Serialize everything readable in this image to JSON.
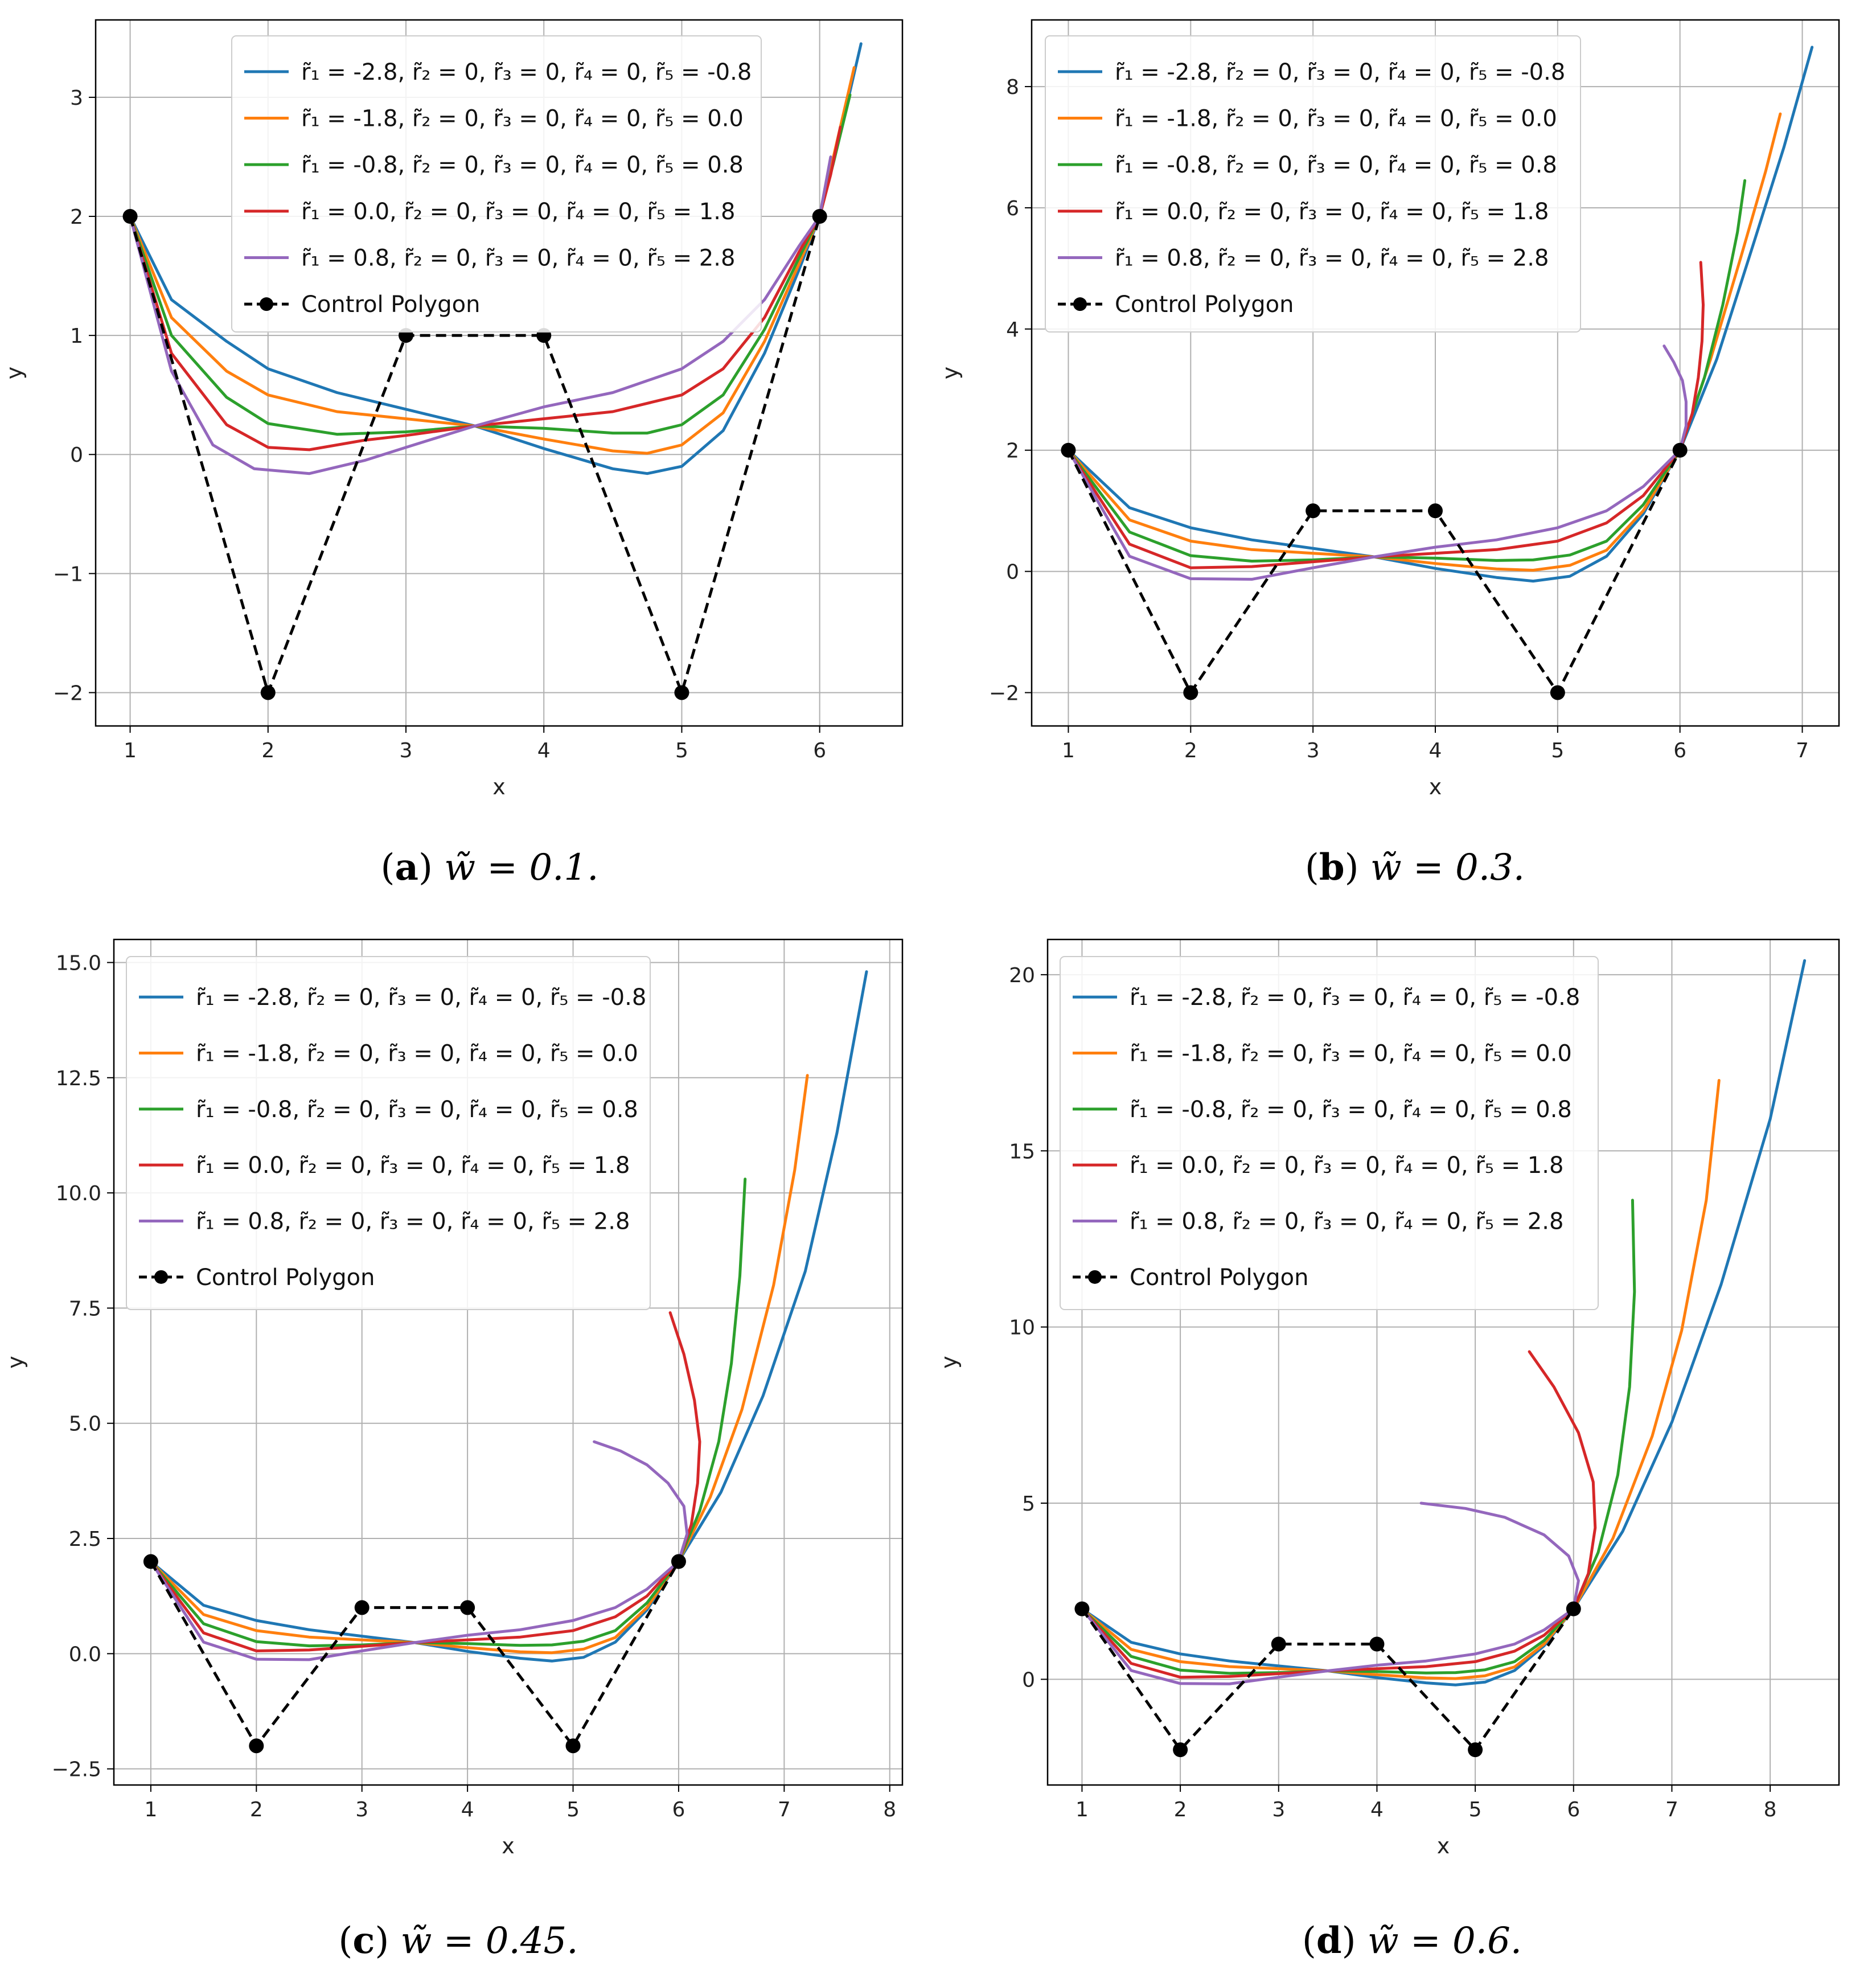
{
  "chart_data": [
    {
      "type": "line",
      "caption_letter": "a",
      "caption_text": "w̃ = 0.1.",
      "xlabel": "x",
      "ylabel": "y",
      "xlim": [
        0.75,
        6.6
      ],
      "ylim": [
        -2.28,
        3.65
      ],
      "xticks": [
        1,
        2,
        3,
        4,
        5,
        6
      ],
      "yticks": [
        -2,
        -1,
        0,
        1,
        2,
        3
      ],
      "ytick_labels": [
        "−2",
        "−1",
        "0",
        "1",
        "2",
        "3"
      ],
      "grid": true,
      "legend_position": "top-center",
      "control_polygon": {
        "label": "Control Polygon",
        "x": [
          1,
          2,
          3,
          4,
          5,
          6
        ],
        "y": [
          2,
          -2,
          1,
          1,
          -2,
          2
        ]
      },
      "series": [
        {
          "name": "r̃₁ = -2.8, r̃₂ = 0, r̃₃ = 0, r̃₄ = 0, r̃₅ = -0.8",
          "color": "#1f77b4",
          "x": [
            1.0,
            1.3,
            1.7,
            2.0,
            2.5,
            3.0,
            3.5,
            4.0,
            4.5,
            4.75,
            5.0,
            5.3,
            5.6,
            5.85,
            6.0,
            6.15,
            6.3
          ],
          "y": [
            2.0,
            1.3,
            0.95,
            0.72,
            0.52,
            0.38,
            0.24,
            0.05,
            -0.12,
            -0.16,
            -0.1,
            0.2,
            0.85,
            1.55,
            2.0,
            2.7,
            3.45
          ]
        },
        {
          "name": "r̃₁ = -1.8, r̃₂ = 0, r̃₃ = 0, r̃₄ = 0, r̃₅ = 0.0",
          "color": "#ff7f0e",
          "x": [
            1.0,
            1.3,
            1.7,
            2.0,
            2.5,
            3.0,
            3.5,
            4.0,
            4.5,
            4.75,
            5.0,
            5.3,
            5.6,
            5.85,
            6.0,
            6.12,
            6.25
          ],
          "y": [
            2.0,
            1.15,
            0.7,
            0.5,
            0.36,
            0.3,
            0.24,
            0.13,
            0.03,
            0.01,
            0.08,
            0.35,
            0.95,
            1.6,
            2.0,
            2.6,
            3.25
          ]
        },
        {
          "name": "r̃₁ = -0.8, r̃₂ = 0, r̃₃ = 0, r̃₄ = 0, r̃₅ = 0.8",
          "color": "#2ca02c",
          "x": [
            1.0,
            1.3,
            1.7,
            2.0,
            2.5,
            3.0,
            3.5,
            4.0,
            4.5,
            4.75,
            5.0,
            5.3,
            5.6,
            5.85,
            6.0,
            6.1,
            6.22
          ],
          "y": [
            2.0,
            1.0,
            0.48,
            0.26,
            0.17,
            0.19,
            0.24,
            0.22,
            0.18,
            0.18,
            0.25,
            0.5,
            1.05,
            1.65,
            2.0,
            2.45,
            3.02
          ]
        },
        {
          "name": "r̃₁ = 0.0, r̃₂ = 0, r̃₃ = 0, r̃₄ = 0, r̃₅ = 1.8",
          "color": "#d62728",
          "x": [
            1.0,
            1.3,
            1.7,
            2.0,
            2.3,
            2.7,
            3.0,
            3.5,
            4.0,
            4.5,
            5.0,
            5.3,
            5.6,
            5.85,
            6.0,
            6.08,
            6.15
          ],
          "y": [
            2.0,
            0.85,
            0.25,
            0.06,
            0.04,
            0.12,
            0.16,
            0.24,
            0.3,
            0.36,
            0.5,
            0.72,
            1.15,
            1.7,
            2.0,
            2.35,
            2.75
          ]
        },
        {
          "name": "r̃₁ = 0.8, r̃₂ = 0, r̃₃ = 0, r̃₄ = 0, r̃₅ = 2.8",
          "color": "#9467bd",
          "x": [
            1.0,
            1.3,
            1.6,
            1.9,
            2.3,
            2.7,
            3.0,
            3.5,
            4.0,
            4.5,
            5.0,
            5.3,
            5.6,
            5.85,
            6.0,
            6.04,
            6.08
          ],
          "y": [
            2.0,
            0.7,
            0.08,
            -0.12,
            -0.16,
            -0.05,
            0.06,
            0.24,
            0.4,
            0.52,
            0.72,
            0.95,
            1.3,
            1.75,
            2.0,
            2.25,
            2.5
          ]
        }
      ]
    },
    {
      "type": "line",
      "caption_letter": "b",
      "caption_text": "w̃ = 0.3.",
      "xlabel": "x",
      "ylabel": "y",
      "xlim": [
        0.7,
        7.3
      ],
      "ylim": [
        -2.55,
        9.1
      ],
      "xticks": [
        1,
        2,
        3,
        4,
        5,
        6,
        7
      ],
      "yticks": [
        -2,
        0,
        2,
        4,
        6,
        8
      ],
      "ytick_labels": [
        "−2",
        "0",
        "2",
        "4",
        "6",
        "8"
      ],
      "grid": true,
      "legend_position": "top-left",
      "control_polygon": {
        "label": "Control Polygon",
        "x": [
          1,
          2,
          3,
          4,
          5,
          6
        ],
        "y": [
          2,
          -2,
          1,
          1,
          -2,
          2
        ]
      },
      "series": [
        {
          "name": "r̃₁ = -2.8, r̃₂ = 0, r̃₃ = 0, r̃₄ = 0, r̃₅ = -0.8",
          "color": "#1f77b4",
          "x": [
            1.0,
            1.5,
            2.0,
            2.5,
            3.0,
            3.5,
            4.0,
            4.5,
            4.8,
            5.1,
            5.4,
            5.7,
            6.0,
            6.3,
            6.6,
            6.85,
            7.08
          ],
          "y": [
            2.0,
            1.05,
            0.72,
            0.52,
            0.38,
            0.24,
            0.05,
            -0.1,
            -0.16,
            -0.08,
            0.25,
            0.95,
            2.0,
            3.5,
            5.4,
            7.0,
            8.65
          ]
        },
        {
          "name": "r̃₁ = -1.8, r̃₂ = 0, r̃₃ = 0, r̃₄ = 0, r̃₅ = 0.0",
          "color": "#ff7f0e",
          "x": [
            1.0,
            1.5,
            2.0,
            2.5,
            3.0,
            3.5,
            4.0,
            4.5,
            4.8,
            5.1,
            5.4,
            5.7,
            6.0,
            6.25,
            6.5,
            6.7,
            6.82
          ],
          "y": [
            2.0,
            0.85,
            0.5,
            0.36,
            0.3,
            0.24,
            0.13,
            0.04,
            0.02,
            0.1,
            0.35,
            1.0,
            2.0,
            3.5,
            5.2,
            6.6,
            7.55
          ]
        },
        {
          "name": "r̃₁ = -0.8, r̃₂ = 0, r̃₃ = 0, r̃₄ = 0, r̃₅ = 0.8",
          "color": "#2ca02c",
          "x": [
            1.0,
            1.5,
            2.0,
            2.5,
            3.0,
            3.5,
            4.0,
            4.5,
            4.8,
            5.1,
            5.4,
            5.7,
            6.0,
            6.2,
            6.35,
            6.47,
            6.53
          ],
          "y": [
            2.0,
            0.65,
            0.26,
            0.17,
            0.19,
            0.24,
            0.22,
            0.18,
            0.19,
            0.27,
            0.5,
            1.1,
            2.0,
            3.2,
            4.4,
            5.6,
            6.45
          ]
        },
        {
          "name": "r̃₁ = 0.0, r̃₂ = 0, r̃₃ = 0, r̃₄ = 0, r̃₅ = 1.8",
          "color": "#d62728",
          "x": [
            1.0,
            1.5,
            2.0,
            2.5,
            3.0,
            3.5,
            4.0,
            4.5,
            5.0,
            5.4,
            5.7,
            6.0,
            6.1,
            6.15,
            6.18,
            6.19,
            6.17
          ],
          "y": [
            2.0,
            0.45,
            0.06,
            0.08,
            0.16,
            0.24,
            0.3,
            0.36,
            0.5,
            0.8,
            1.25,
            2.0,
            2.6,
            3.2,
            3.8,
            4.4,
            5.1
          ]
        },
        {
          "name": "r̃₁ = 0.8, r̃₂ = 0, r̃₃ = 0, r̃₄ = 0, r̃₅ = 2.8",
          "color": "#9467bd",
          "x": [
            1.0,
            1.5,
            2.0,
            2.5,
            3.0,
            3.5,
            4.0,
            4.5,
            5.0,
            5.4,
            5.7,
            6.0,
            6.05,
            6.05,
            6.02,
            5.95,
            5.87
          ],
          "y": [
            2.0,
            0.25,
            -0.12,
            -0.13,
            0.06,
            0.24,
            0.4,
            0.52,
            0.72,
            1.0,
            1.4,
            2.0,
            2.4,
            2.8,
            3.15,
            3.45,
            3.72
          ]
        }
      ]
    },
    {
      "type": "line",
      "caption_letter": "c",
      "caption_text": "w̃ = 0.45.",
      "xlabel": "x",
      "ylabel": "y",
      "xlim": [
        0.65,
        8.12
      ],
      "ylim": [
        -2.85,
        15.5
      ],
      "xticks": [
        1,
        2,
        3,
        4,
        5,
        6,
        7,
        8
      ],
      "yticks": [
        -2.5,
        0.0,
        2.5,
        5.0,
        7.5,
        10.0,
        12.5,
        15.0
      ],
      "ytick_labels": [
        "−2.5",
        "0.0",
        "2.5",
        "5.0",
        "7.5",
        "10.0",
        "12.5",
        "15.0"
      ],
      "grid": true,
      "legend_position": "top-left",
      "control_polygon": {
        "label": "Control Polygon",
        "x": [
          1,
          2,
          3,
          4,
          5,
          6
        ],
        "y": [
          2,
          -2,
          1,
          1,
          -2,
          2
        ]
      },
      "series": [
        {
          "name": "r̃₁ = -2.8, r̃₂ = 0, r̃₃ = 0, r̃₄ = 0, r̃₅ = -0.8",
          "color": "#1f77b4",
          "x": [
            1.0,
            1.5,
            2.0,
            2.5,
            3.0,
            3.5,
            4.0,
            4.5,
            4.8,
            5.1,
            5.4,
            5.7,
            6.0,
            6.4,
            6.8,
            7.2,
            7.5,
            7.78
          ],
          "y": [
            2.0,
            1.05,
            0.72,
            0.52,
            0.38,
            0.24,
            0.05,
            -0.1,
            -0.16,
            -0.08,
            0.25,
            0.95,
            2.0,
            3.5,
            5.6,
            8.3,
            11.3,
            14.8
          ]
        },
        {
          "name": "r̃₁ = -1.8, r̃₂ = 0, r̃₃ = 0, r̃₄ = 0, r̃₅ = 0.0",
          "color": "#ff7f0e",
          "x": [
            1.0,
            1.5,
            2.0,
            2.5,
            3.0,
            3.5,
            4.0,
            4.5,
            4.8,
            5.1,
            5.4,
            5.7,
            6.0,
            6.3,
            6.6,
            6.9,
            7.1,
            7.22
          ],
          "y": [
            2.0,
            0.85,
            0.5,
            0.36,
            0.3,
            0.24,
            0.13,
            0.04,
            0.02,
            0.1,
            0.35,
            1.0,
            2.0,
            3.4,
            5.3,
            8.0,
            10.5,
            12.55
          ]
        },
        {
          "name": "r̃₁ = -0.8, r̃₂ = 0, r̃₃ = 0, r̃₄ = 0, r̃₅ = 0.8",
          "color": "#2ca02c",
          "x": [
            1.0,
            1.5,
            2.0,
            2.5,
            3.0,
            3.5,
            4.0,
            4.5,
            4.8,
            5.1,
            5.4,
            5.7,
            6.0,
            6.2,
            6.38,
            6.5,
            6.58,
            6.63
          ],
          "y": [
            2.0,
            0.65,
            0.26,
            0.17,
            0.19,
            0.24,
            0.22,
            0.18,
            0.19,
            0.27,
            0.5,
            1.1,
            2.0,
            3.1,
            4.6,
            6.3,
            8.2,
            10.3
          ]
        },
        {
          "name": "r̃₁ = 0.0, r̃₂ = 0, r̃₃ = 0, r̃₄ = 0, r̃₅ = 1.8",
          "color": "#d62728",
          "x": [
            1.0,
            1.5,
            2.0,
            2.5,
            3.0,
            3.5,
            4.0,
            4.5,
            5.0,
            5.4,
            5.7,
            6.0,
            6.12,
            6.18,
            6.2,
            6.15,
            6.05,
            5.92
          ],
          "y": [
            2.0,
            0.45,
            0.06,
            0.08,
            0.16,
            0.24,
            0.3,
            0.36,
            0.5,
            0.8,
            1.25,
            2.0,
            2.8,
            3.7,
            4.6,
            5.5,
            6.5,
            7.4
          ]
        },
        {
          "name": "r̃₁ = 0.8, r̃₂ = 0, r̃₃ = 0, r̃₄ = 0, r̃₅ = 2.8",
          "color": "#9467bd",
          "x": [
            1.0,
            1.5,
            2.0,
            2.5,
            3.0,
            3.5,
            4.0,
            4.5,
            5.0,
            5.4,
            5.7,
            6.0,
            6.08,
            6.05,
            5.9,
            5.7,
            5.45,
            5.2
          ],
          "y": [
            2.0,
            0.25,
            -0.12,
            -0.13,
            0.06,
            0.24,
            0.4,
            0.52,
            0.72,
            1.0,
            1.4,
            2.0,
            2.6,
            3.2,
            3.7,
            4.1,
            4.4,
            4.6
          ]
        }
      ]
    },
    {
      "type": "line",
      "caption_letter": "d",
      "caption_text": "w̃ = 0.6.",
      "xlabel": "x",
      "ylabel": "y",
      "xlim": [
        0.65,
        8.7
      ],
      "ylim": [
        -3.0,
        21.0
      ],
      "xticks": [
        1,
        2,
        3,
        4,
        5,
        6,
        7,
        8
      ],
      "yticks": [
        0,
        5,
        10,
        15,
        20
      ],
      "ytick_labels": [
        "0",
        "5",
        "10",
        "15",
        "20"
      ],
      "grid": true,
      "legend_position": "top-left",
      "control_polygon": {
        "label": "Control Polygon",
        "x": [
          1,
          2,
          3,
          4,
          5,
          6
        ],
        "y": [
          2,
          -2,
          1,
          1,
          -2,
          2
        ]
      },
      "series": [
        {
          "name": "r̃₁ = -2.8, r̃₂ = 0, r̃₃ = 0, r̃₄ = 0, r̃₅ = -0.8",
          "color": "#1f77b4",
          "x": [
            1.0,
            1.5,
            2.0,
            2.5,
            3.0,
            3.5,
            4.0,
            4.5,
            4.8,
            5.1,
            5.4,
            5.7,
            6.0,
            6.5,
            7.0,
            7.5,
            8.0,
            8.35
          ],
          "y": [
            2.0,
            1.05,
            0.72,
            0.52,
            0.38,
            0.24,
            0.05,
            -0.1,
            -0.16,
            -0.08,
            0.25,
            0.95,
            2.0,
            4.2,
            7.3,
            11.2,
            15.9,
            20.4
          ]
        },
        {
          "name": "r̃₁ = -1.8, r̃₂ = 0, r̃₃ = 0, r̃₄ = 0, r̃₅ = 0.0",
          "color": "#ff7f0e",
          "x": [
            1.0,
            1.5,
            2.0,
            2.5,
            3.0,
            3.5,
            4.0,
            4.5,
            4.8,
            5.1,
            5.4,
            5.7,
            6.0,
            6.4,
            6.8,
            7.1,
            7.35,
            7.48
          ],
          "y": [
            2.0,
            0.85,
            0.5,
            0.36,
            0.3,
            0.24,
            0.13,
            0.04,
            0.02,
            0.1,
            0.35,
            1.0,
            2.0,
            4.0,
            6.9,
            9.9,
            13.6,
            17.0
          ]
        },
        {
          "name": "r̃₁ = -0.8, r̃₂ = 0, r̃₃ = 0, r̃₄ = 0, r̃₅ = 0.8",
          "color": "#2ca02c",
          "x": [
            1.0,
            1.5,
            2.0,
            2.5,
            3.0,
            3.5,
            4.0,
            4.5,
            4.8,
            5.1,
            5.4,
            5.7,
            6.0,
            6.25,
            6.45,
            6.57,
            6.62,
            6.6
          ],
          "y": [
            2.0,
            0.65,
            0.26,
            0.17,
            0.19,
            0.24,
            0.22,
            0.18,
            0.19,
            0.27,
            0.5,
            1.1,
            2.0,
            3.6,
            5.8,
            8.3,
            11.0,
            13.6
          ]
        },
        {
          "name": "r̃₁ = 0.0, r̃₂ = 0, r̃₃ = 0, r̃₄ = 0, r̃₅ = 1.8",
          "color": "#d62728",
          "x": [
            1.0,
            1.5,
            2.0,
            2.5,
            3.0,
            3.5,
            4.0,
            4.5,
            5.0,
            5.4,
            5.7,
            6.0,
            6.15,
            6.22,
            6.2,
            6.05,
            5.8,
            5.55
          ],
          "y": [
            2.0,
            0.45,
            0.06,
            0.08,
            0.16,
            0.24,
            0.3,
            0.36,
            0.5,
            0.8,
            1.25,
            2.0,
            3.0,
            4.3,
            5.6,
            7.0,
            8.3,
            9.3
          ]
        },
        {
          "name": "r̃₁ = 0.8, r̃₂ = 0, r̃₃ = 0, r̃₄ = 0, r̃₅ = 2.8",
          "color": "#9467bd",
          "x": [
            1.0,
            1.5,
            2.0,
            2.5,
            3.0,
            3.5,
            4.0,
            4.5,
            5.0,
            5.4,
            5.7,
            6.0,
            6.05,
            5.95,
            5.7,
            5.3,
            4.9,
            4.45
          ],
          "y": [
            2.0,
            0.25,
            -0.12,
            -0.13,
            0.06,
            0.24,
            0.4,
            0.52,
            0.72,
            1.0,
            1.4,
            2.0,
            2.8,
            3.5,
            4.1,
            4.6,
            4.85,
            5.0
          ]
        }
      ]
    }
  ]
}
